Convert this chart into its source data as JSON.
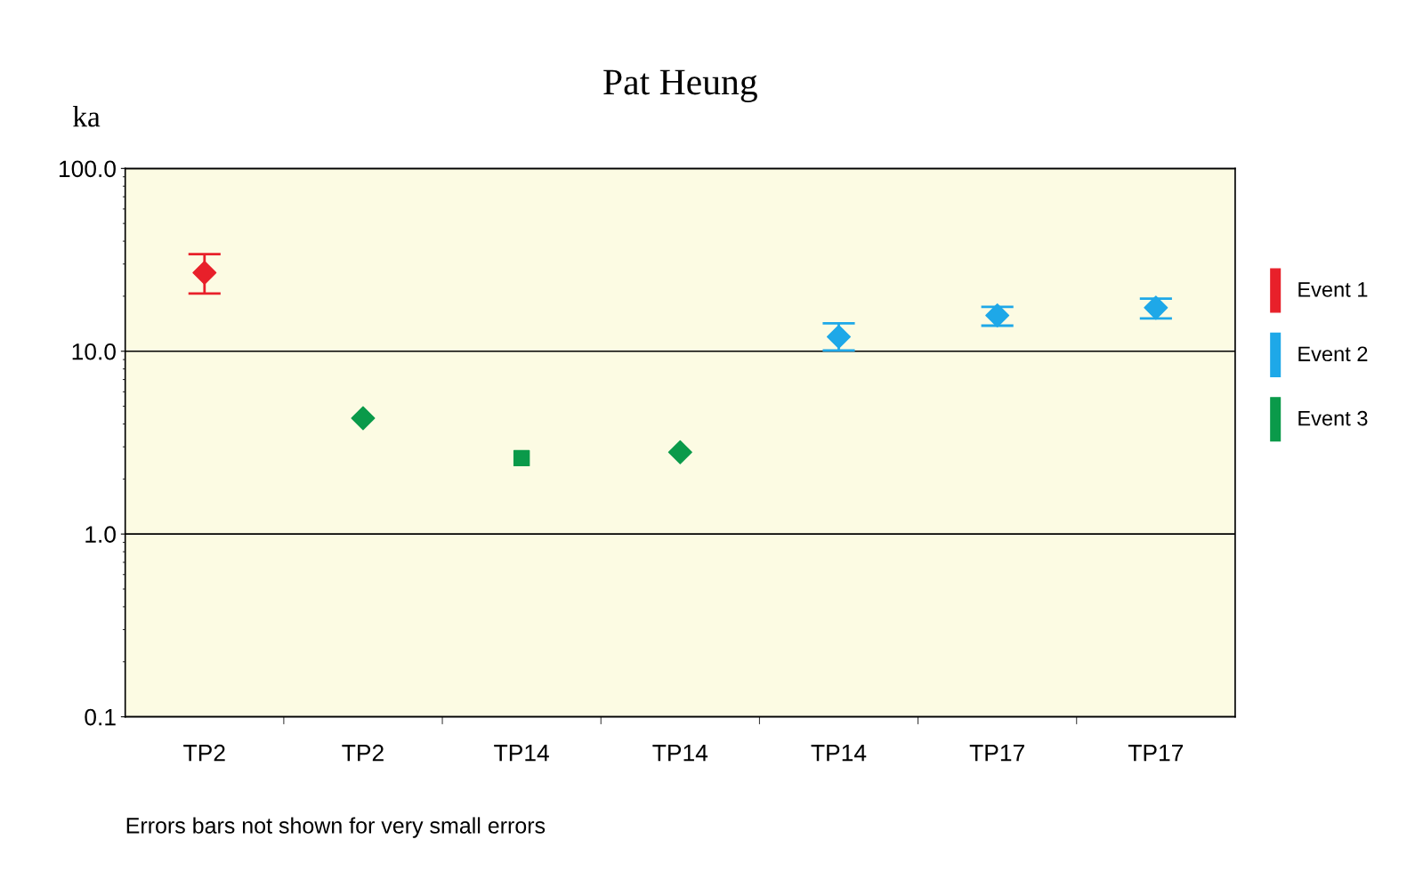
{
  "chart_data": {
    "type": "scatter",
    "title": "Pat Heung",
    "ylabel": "ka",
    "categories": [
      "TP2",
      "TP2",
      "TP14",
      "TP14",
      "TP14",
      "TP17",
      "TP17"
    ],
    "log": "y",
    "ylim": [
      0.1,
      100
    ],
    "yticks": [
      {
        "value": 0.1,
        "label": "0.1"
      },
      {
        "value": 1,
        "label": "1.0"
      },
      {
        "value": 10,
        "label": "10.0"
      },
      {
        "value": 100,
        "label": "100.0"
      }
    ],
    "grid": "y",
    "legend": "right",
    "series": [
      {
        "name": "Event 1",
        "color": "#e8202a",
        "marker": "diamond",
        "values": [
          26.9,
          null,
          null,
          null,
          null,
          null,
          null
        ],
        "errors": [
          [
            20.7,
            34
          ],
          null,
          null,
          null,
          null,
          null,
          null
        ]
      },
      {
        "name": "Event 2",
        "color": "#1ea8e8",
        "marker": "diamond",
        "values": [
          null,
          null,
          null,
          null,
          12.0,
          15.7,
          17.3
        ],
        "errors": [
          null,
          null,
          null,
          null,
          [
            10.1,
            14.2
          ],
          [
            13.8,
            17.5
          ],
          [
            15.1,
            19.4
          ]
        ]
      },
      {
        "name": "Event 3",
        "color": "#0a9a4a",
        "marker": "diamond",
        "values": [
          null,
          4.3,
          null,
          2.8,
          null,
          null,
          null
        ]
      },
      {
        "color": "#0a9a4a",
        "marker": "square",
        "values": [
          null,
          null,
          2.6,
          null,
          null,
          null,
          null
        ]
      }
    ],
    "annotations": [
      "Errors bars not shown for very small errors"
    ]
  }
}
